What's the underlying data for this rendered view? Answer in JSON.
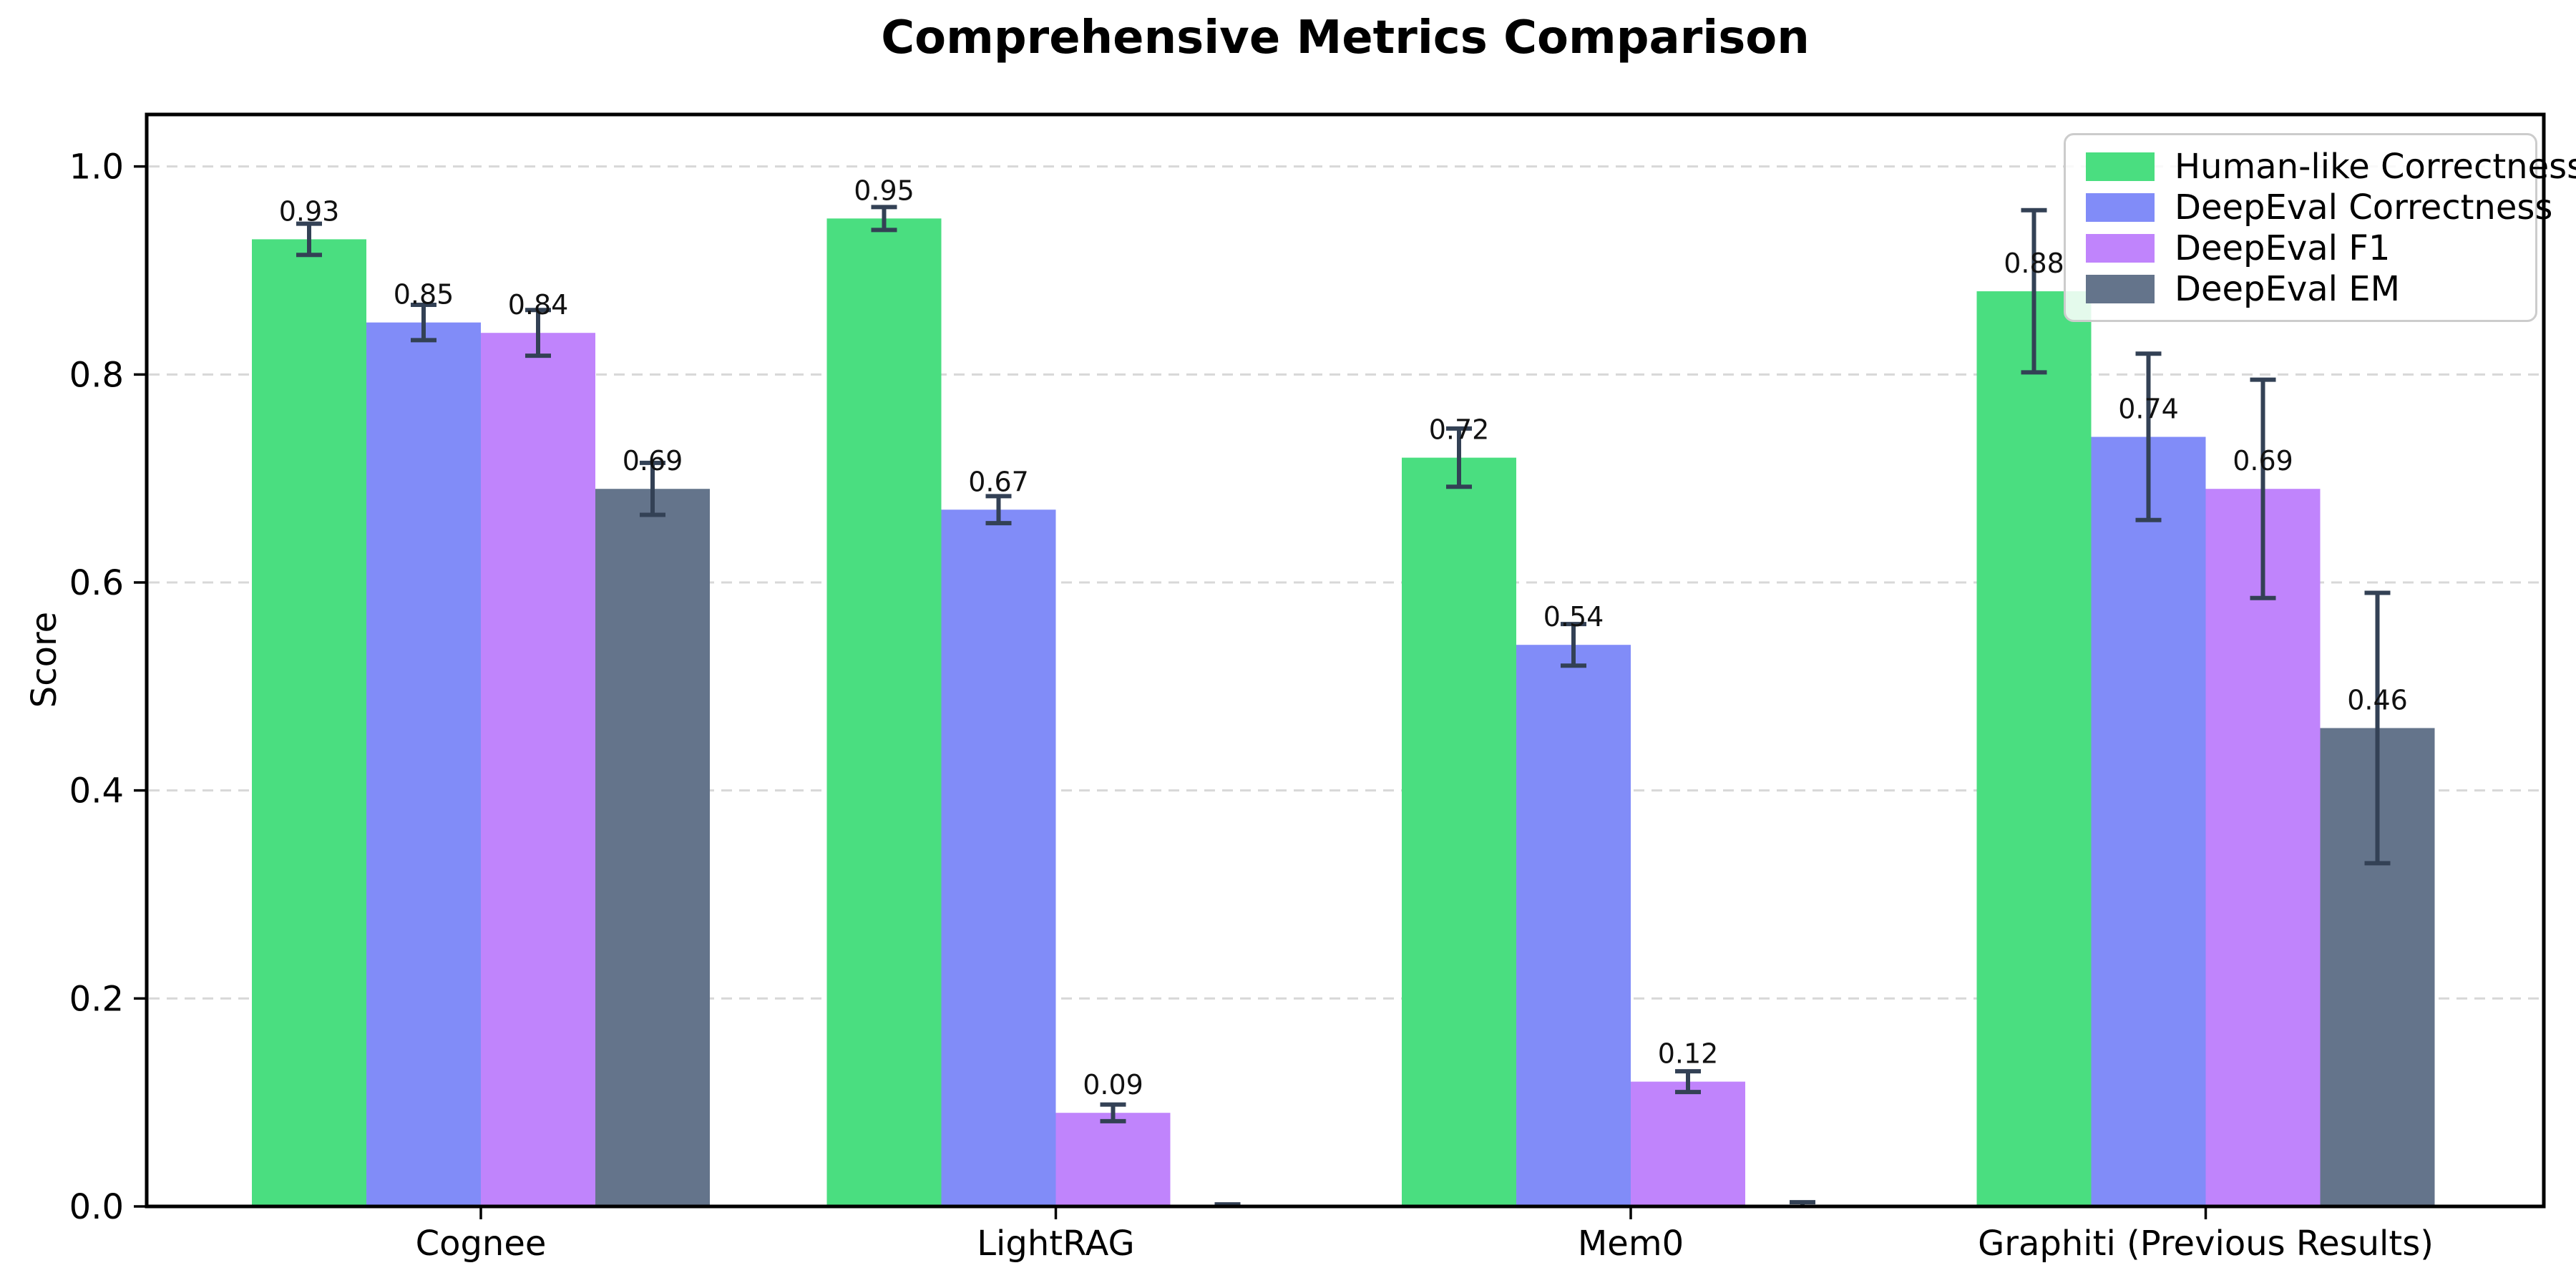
{
  "chart_data": {
    "type": "bar",
    "title": "Comprehensive Metrics Comparison",
    "ylabel": "Score",
    "xlabel": "",
    "categories": [
      "Cognee",
      "LightRAG",
      "Mem0",
      "Graphiti (Previous Results)"
    ],
    "series": [
      {
        "name": "Human-like Correctness",
        "color": "#4ade80",
        "values": [
          0.93,
          0.95,
          0.72,
          0.88
        ],
        "errors": [
          0.015,
          0.011,
          0.028,
          0.078
        ]
      },
      {
        "name": "DeepEval Correctness",
        "color": "#818cf8",
        "values": [
          0.85,
          0.67,
          0.54,
          0.74
        ],
        "errors": [
          0.017,
          0.013,
          0.02,
          0.08
        ]
      },
      {
        "name": "DeepEval F1",
        "color": "#c084fc",
        "values": [
          0.84,
          0.09,
          0.12,
          0.69
        ],
        "errors": [
          0.022,
          0.008,
          0.01,
          0.105
        ]
      },
      {
        "name": "DeepEval EM",
        "color": "#64748b",
        "values": [
          0.69,
          0.0,
          0.0,
          0.46
        ],
        "errors": [
          0.025,
          0.002,
          0.004,
          0.13
        ]
      }
    ],
    "ylim": [
      0,
      1.05
    ],
    "yticks": [
      0.0,
      0.2,
      0.4,
      0.6,
      0.8,
      1.0
    ],
    "ytick_labels": [
      "0.0",
      "0.2",
      "0.4",
      "0.6",
      "0.8",
      "1.0"
    ],
    "bar_labels": {
      "decimals": 2,
      "skip_zero": true
    },
    "grid": {
      "axis": "y",
      "style": "dashed",
      "color": "#d8d8d8"
    },
    "legend": {
      "position": "upper right"
    },
    "error_bar_color": "#334155",
    "spine_color": "#000000",
    "text_color": "#000000",
    "background": "#ffffff",
    "bar_width_fraction": 0.2
  }
}
